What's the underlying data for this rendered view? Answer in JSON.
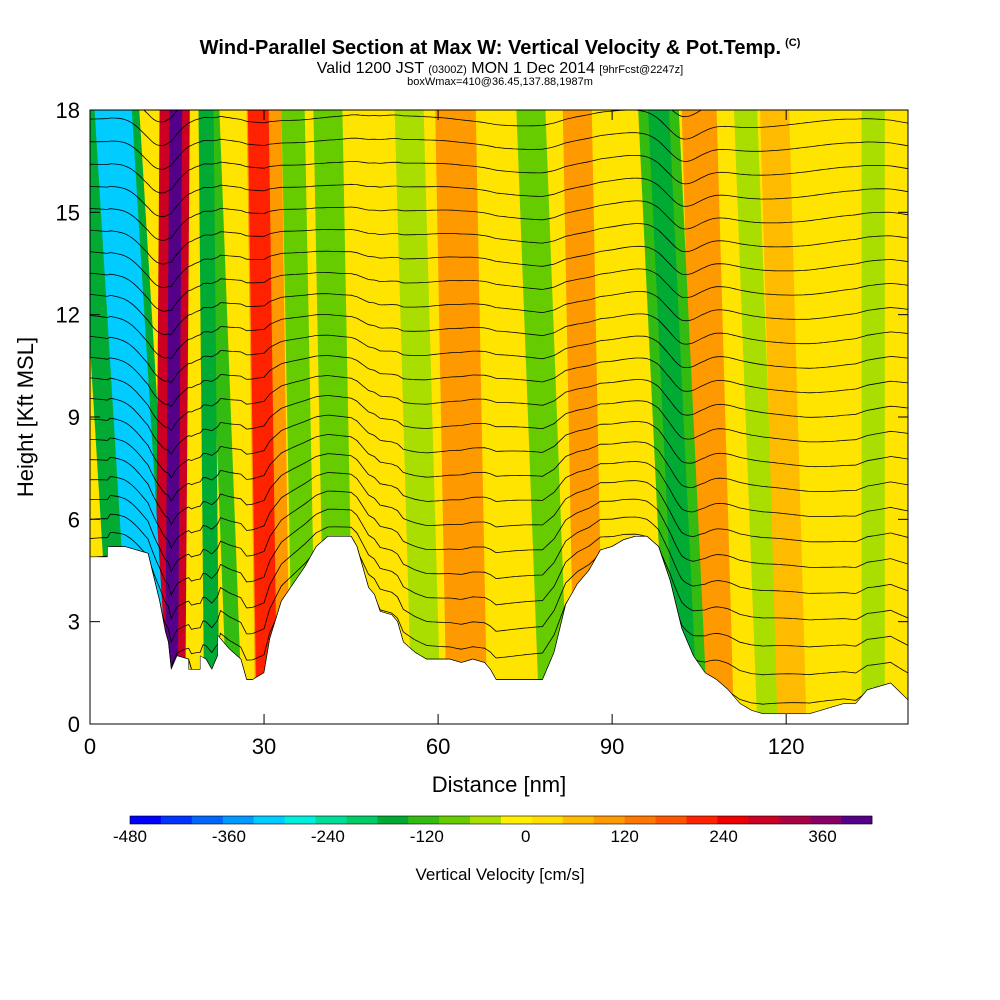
{
  "titles": {
    "main": "Wind-Parallel Section at Max W: Vertical Velocity & Pot.Temp.",
    "copyright": "(C)",
    "valid_prefix": "Valid 1200 JST",
    "valid_utc": "(0300Z)",
    "valid_date": "MON 1 Dec 2014",
    "forecast": "[9hrFcst@2247z]",
    "box": "boxWmax=410@36.45,137.88,1987m"
  },
  "colors": {
    "background_w": "#ffe400",
    "terrain": "#ffffff",
    "contour": "#000000"
  },
  "chart_data": {
    "type": "heatmap",
    "title": "Wind-Parallel Section at Max W: Vertical Velocity & Pot.Temp.",
    "xlabel": "Distance [nm]",
    "ylabel": "Height [Kft MSL]",
    "xlim": [
      0,
      141
    ],
    "ylim": [
      0,
      18
    ],
    "xticks": [
      0,
      30,
      60,
      90,
      120
    ],
    "yticks": [
      0,
      3,
      6,
      9,
      12,
      15,
      18
    ],
    "colorbar": {
      "label": "Vertical Velocity [cm/s]",
      "tick_labels": [
        "-480",
        "-360",
        "-240",
        "-120",
        "0",
        "120",
        "240",
        "360"
      ],
      "tick_values": [
        -480,
        -360,
        -240,
        -120,
        0,
        120,
        240,
        360
      ],
      "min": -480,
      "max": 420,
      "colors": [
        "#0000ff",
        "#0033ff",
        "#0066ff",
        "#0099ff",
        "#00ccff",
        "#00eedd",
        "#00dd99",
        "#00cc66",
        "#00aa33",
        "#33bb11",
        "#66cc00",
        "#aadd00",
        "#ffee00",
        "#ffdd00",
        "#ffbb00",
        "#ff9900",
        "#ff7700",
        "#ff5500",
        "#ff2200",
        "#ee0000",
        "#cc0022",
        "#aa0044",
        "#880066",
        "#550088"
      ]
    },
    "terrain_profile": {
      "x": [
        0,
        3,
        3,
        6,
        6,
        10,
        12,
        13,
        13.5,
        14,
        15,
        17,
        17,
        19,
        19,
        20,
        21,
        22,
        22,
        24,
        26,
        26,
        27,
        28,
        28,
        30,
        31,
        33,
        35,
        37,
        39,
        41,
        42,
        43,
        45,
        46,
        47,
        48,
        49,
        50,
        52,
        53,
        54,
        56,
        58,
        60,
        62,
        64,
        66,
        68,
        69,
        70,
        71,
        72,
        74,
        76,
        78,
        80,
        82,
        84,
        86,
        88,
        90,
        92,
        94,
        96,
        98,
        100,
        102,
        104,
        106,
        108,
        110,
        112,
        114,
        116,
        118,
        120,
        122,
        124,
        126,
        128,
        130,
        132,
        134,
        136,
        138,
        141
      ],
      "y": [
        4.9,
        4.9,
        5.2,
        5.2,
        5.2,
        5.0,
        3.6,
        2.7,
        2.4,
        1.6,
        2.0,
        1.9,
        1.6,
        1.6,
        2.0,
        1.9,
        1.6,
        2.0,
        2.6,
        2.2,
        1.9,
        1.9,
        1.3,
        1.3,
        1.3,
        1.5,
        2.5,
        3.6,
        4.1,
        4.6,
        5.2,
        5.5,
        5.5,
        5.5,
        5.5,
        5.2,
        4.6,
        4.0,
        3.8,
        3.3,
        3.2,
        3.0,
        2.4,
        2.1,
        1.9,
        1.9,
        1.9,
        1.8,
        1.9,
        1.8,
        1.6,
        1.3,
        1.3,
        1.3,
        1.3,
        1.3,
        1.3,
        2.1,
        3.5,
        4.1,
        4.5,
        5.1,
        5.2,
        5.4,
        5.5,
        5.5,
        5.2,
        4.2,
        2.8,
        2.0,
        1.5,
        1.3,
        1.0,
        0.6,
        0.4,
        0.3,
        0.3,
        0.3,
        0.3,
        0.3,
        0.4,
        0.5,
        0.6,
        0.6,
        1.0,
        1.1,
        1.2,
        0.7
      ]
    },
    "w_bands": [
      {
        "x_bottom": 10.5,
        "x_top": 4.0,
        "halfwidth": 3.2,
        "w": -330
      },
      {
        "x_bottom": 9.5,
        "x_top": 3.0,
        "halfwidth": 5.5,
        "w": -180
      },
      {
        "x_bottom": 13.8,
        "x_top": 14.6,
        "halfwidth": 2.6,
        "w": 300
      },
      {
        "x_bottom": 14.0,
        "x_top": 14.8,
        "halfwidth": 1.1,
        "w": 400
      },
      {
        "x_bottom": 21.0,
        "x_top": 20.0,
        "halfwidth": 1.3,
        "w": -150
      },
      {
        "x_bottom": 25.0,
        "x_top": 21.0,
        "halfwidth": 1.3,
        "w": -130
      },
      {
        "x_bottom": 30.5,
        "x_top": 29.0,
        "halfwidth": 1.8,
        "w": 200
      },
      {
        "x_bottom": 31.5,
        "x_top": 30.0,
        "halfwidth": 3.0,
        "w": 110
      },
      {
        "x_bottom": 37.0,
        "x_top": 35.0,
        "halfwidth": 2.0,
        "w": -100
      },
      {
        "x_bottom": 43.0,
        "x_top": 41.0,
        "halfwidth": 2.5,
        "w": -90
      },
      {
        "x_bottom": 58.0,
        "x_top": 55.0,
        "halfwidth": 2.5,
        "w": -40
      },
      {
        "x_bottom": 65.0,
        "x_top": 63.0,
        "halfwidth": 3.5,
        "w": 90
      },
      {
        "x_bottom": 80.0,
        "x_top": 76.0,
        "halfwidth": 2.5,
        "w": -80
      },
      {
        "x_bottom": 86.0,
        "x_top": 84.0,
        "halfwidth": 2.5,
        "w": 90
      },
      {
        "x_bottom": 103.0,
        "x_top": 98.0,
        "halfwidth": 1.8,
        "w": -180
      },
      {
        "x_bottom": 103.0,
        "x_top": 98.0,
        "halfwidth": 3.5,
        "w": -110
      },
      {
        "x_bottom": 108.0,
        "x_top": 105.0,
        "halfwidth": 3.0,
        "w": 90
      },
      {
        "x_bottom": 117.0,
        "x_top": 113.0,
        "halfwidth": 2.0,
        "w": -50
      },
      {
        "x_bottom": 121.0,
        "x_top": 118.0,
        "halfwidth": 2.5,
        "w": 70
      },
      {
        "x_bottom": 135.0,
        "x_top": 135.0,
        "halfwidth": 2.0,
        "w": -60
      }
    ],
    "theta_contours": {
      "count": 26,
      "base_height": 1.4,
      "spacing": 0.68
    }
  }
}
